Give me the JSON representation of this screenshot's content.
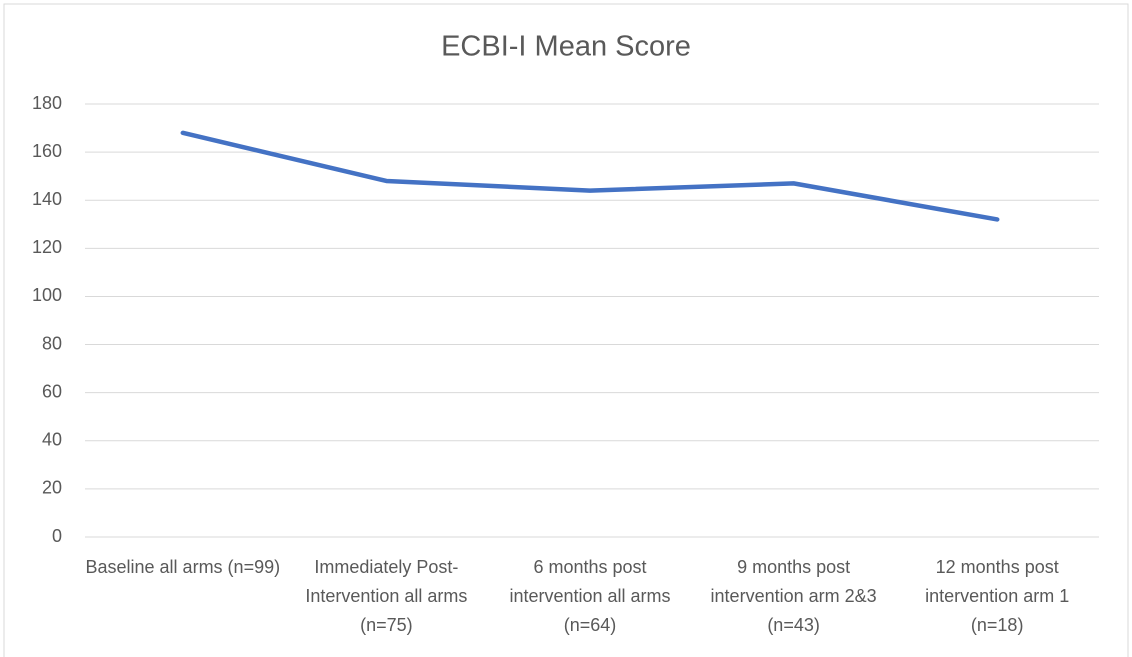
{
  "chart_data": {
    "type": "line",
    "title": "ECBI-I Mean Score",
    "categories": [
      "Baseline all arms (n=99)",
      "Immediately Post-Intervention all arms (n=75)",
      "6 months post intervention all arms (n=64)",
      "9 months post intervention arm 2&3 (n=43)",
      "12 months post intervention arm 1 (n=18)"
    ],
    "series": [
      {
        "name": "ECBI-I Mean Score",
        "color": "#4472c4",
        "values": [
          168,
          148,
          144,
          147,
          132
        ]
      }
    ],
    "ylim": [
      0,
      180
    ],
    "yticks": [
      0,
      20,
      40,
      60,
      80,
      100,
      120,
      140,
      160,
      180
    ],
    "grid": true
  }
}
